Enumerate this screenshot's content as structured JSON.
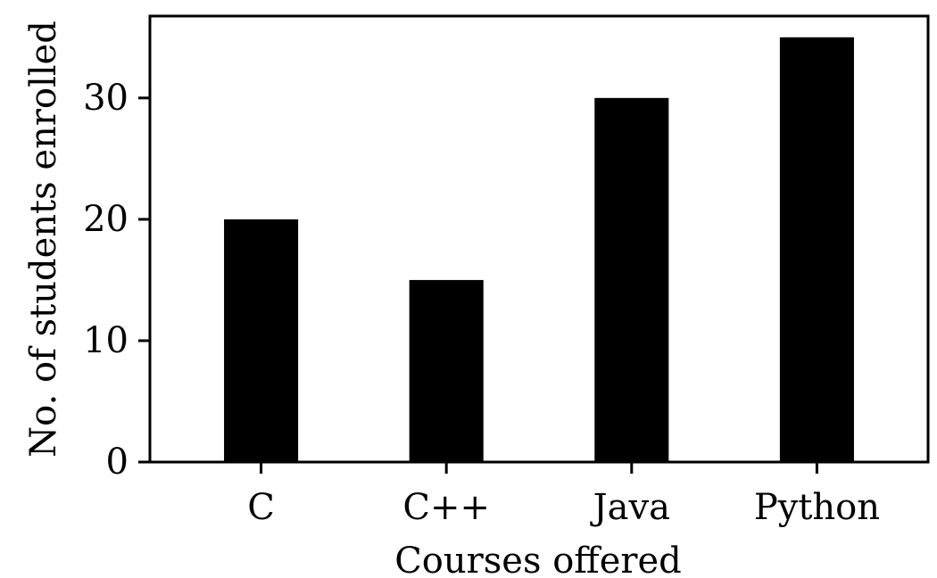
{
  "chart_data": {
    "type": "bar",
    "categories": [
      "C",
      "C++",
      "Java",
      "Python"
    ],
    "values": [
      20,
      15,
      30,
      35
    ],
    "title": "",
    "xlabel": "Courses offered",
    "ylabel": "No. of students enrolled",
    "ylim": [
      0,
      36.75
    ],
    "yticks": [
      0,
      10,
      20,
      30
    ],
    "grid": false,
    "bar_color": "#000000"
  }
}
